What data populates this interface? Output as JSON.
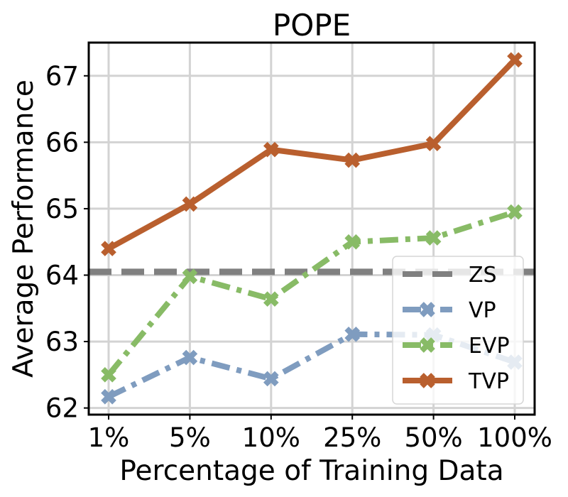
{
  "chart_data": {
    "type": "line",
    "title": "POPE",
    "xlabel": "Percentage of Training Data",
    "ylabel": "Average Performance",
    "categories": [
      "1%",
      "5%",
      "10%",
      "25%",
      "50%",
      "100%"
    ],
    "ylim": [
      61.9,
      67.5
    ],
    "yticks": [
      62,
      63,
      64,
      65,
      66,
      67
    ],
    "grid": true,
    "legend_position": "lower-right",
    "baseline": {
      "name": "ZS",
      "value": 64.05,
      "color": "#808080"
    },
    "series": [
      {
        "name": "VP",
        "color": "#7F9CBF",
        "style": "dashdot",
        "values": [
          62.17,
          62.76,
          62.44,
          63.11,
          63.1,
          62.69
        ]
      },
      {
        "name": "EVP",
        "color": "#88BB66",
        "style": "dashdot",
        "values": [
          62.5,
          63.98,
          63.64,
          64.5,
          64.56,
          64.95
        ]
      },
      {
        "name": "TVP",
        "color": "#B95F2E",
        "style": "solid",
        "values": [
          64.4,
          65.07,
          65.89,
          65.73,
          65.98,
          67.24
        ]
      }
    ]
  }
}
